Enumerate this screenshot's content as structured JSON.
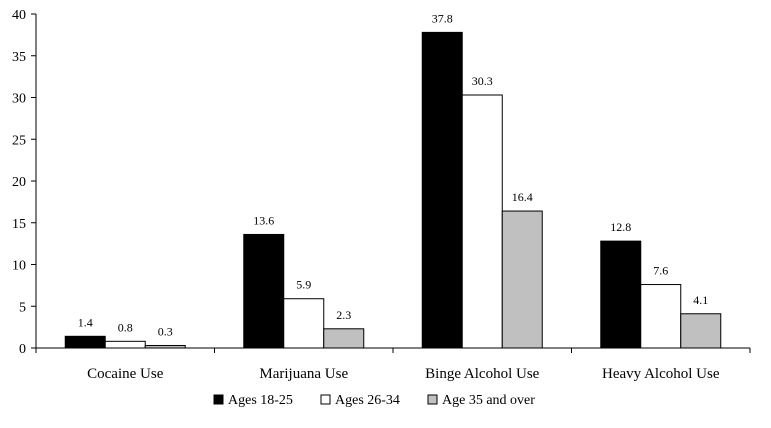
{
  "chart_data": {
    "type": "bar",
    "categories": [
      "Cocaine Use",
      "Marijuana Use",
      "Binge Alcohol Use",
      "Heavy Alcohol Use"
    ],
    "series": [
      {
        "name": "Ages 18-25",
        "color": "#000000",
        "values": [
          1.4,
          13.6,
          37.8,
          12.8
        ],
        "labels": [
          "1.4",
          "13.6",
          "37.8",
          "12.8"
        ]
      },
      {
        "name": "Ages 26-34",
        "color": "#ffffff",
        "values": [
          0.8,
          5.9,
          30.3,
          7.6
        ],
        "labels": [
          "0.8",
          "5.9",
          "30.3",
          "7.6"
        ]
      },
      {
        "name": "Age 35 and over",
        "color": "#c0c0c0",
        "values": [
          0.3,
          2.3,
          16.4,
          4.1
        ],
        "labels": [
          "0.3",
          "2.3",
          "16.4",
          "4.1"
        ]
      }
    ],
    "ylim": [
      0,
      40
    ],
    "yticks": [
      "0",
      "5",
      "10",
      "15",
      "20",
      "25",
      "30",
      "35",
      "40"
    ],
    "grid": false,
    "legend_position": "bottom"
  }
}
